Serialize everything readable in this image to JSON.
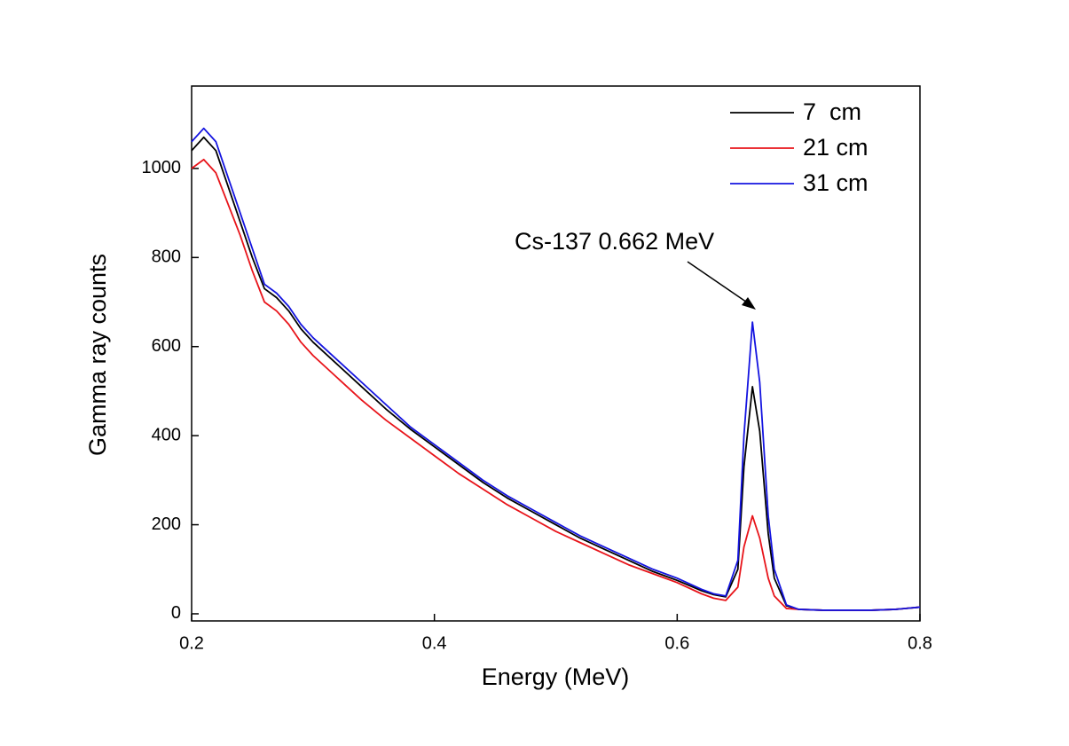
{
  "chart_data": {
    "type": "line",
    "xlabel": "Energy (MeV)",
    "ylabel": "Gamma ray counts",
    "annotation": "Cs-137 0.662 MeV",
    "x": [
      0.2,
      0.21,
      0.22,
      0.23,
      0.24,
      0.25,
      0.26,
      0.27,
      0.28,
      0.29,
      0.3,
      0.32,
      0.34,
      0.36,
      0.38,
      0.4,
      0.42,
      0.44,
      0.46,
      0.48,
      0.5,
      0.52,
      0.54,
      0.56,
      0.58,
      0.6,
      0.62,
      0.63,
      0.64,
      0.65,
      0.655,
      0.662,
      0.668,
      0.675,
      0.68,
      0.69,
      0.7,
      0.72,
      0.74,
      0.76,
      0.78,
      0.8
    ],
    "series": [
      {
        "name": "7  cm",
        "color": "#000000",
        "values": [
          1040,
          1070,
          1040,
          960,
          880,
          800,
          730,
          710,
          680,
          640,
          610,
          560,
          510,
          460,
          415,
          375,
          335,
          295,
          260,
          230,
          200,
          170,
          145,
          120,
          95,
          75,
          52,
          43,
          38,
          100,
          330,
          510,
          410,
          180,
          80,
          18,
          10,
          8,
          8,
          8,
          10,
          15
        ]
      },
      {
        "name": "21 cm",
        "color": "#e8141a",
        "values": [
          1000,
          1020,
          990,
          920,
          850,
          770,
          700,
          680,
          650,
          610,
          580,
          530,
          480,
          435,
          395,
          355,
          315,
          280,
          245,
          215,
          185,
          160,
          135,
          110,
          90,
          70,
          45,
          35,
          30,
          60,
          150,
          220,
          170,
          80,
          40,
          12,
          10,
          8,
          8,
          8,
          10,
          15
        ]
      },
      {
        "name": "31 cm",
        "color": "#1414e0",
        "values": [
          1060,
          1090,
          1060,
          980,
          900,
          820,
          740,
          720,
          690,
          650,
          620,
          570,
          520,
          470,
          420,
          380,
          340,
          300,
          265,
          235,
          205,
          175,
          150,
          125,
          100,
          80,
          55,
          45,
          40,
          120,
          400,
          655,
          520,
          220,
          100,
          20,
          10,
          8,
          8,
          8,
          10,
          15
        ]
      }
    ],
    "xlim": [
      0.2,
      0.8
    ],
    "xticks": [
      0.2,
      0.4,
      0.6,
      0.8
    ],
    "ylim": [
      -16,
      1185
    ],
    "yticks": [
      0,
      200,
      400,
      600,
      800,
      1000
    ],
    "legend": "top-right"
  }
}
